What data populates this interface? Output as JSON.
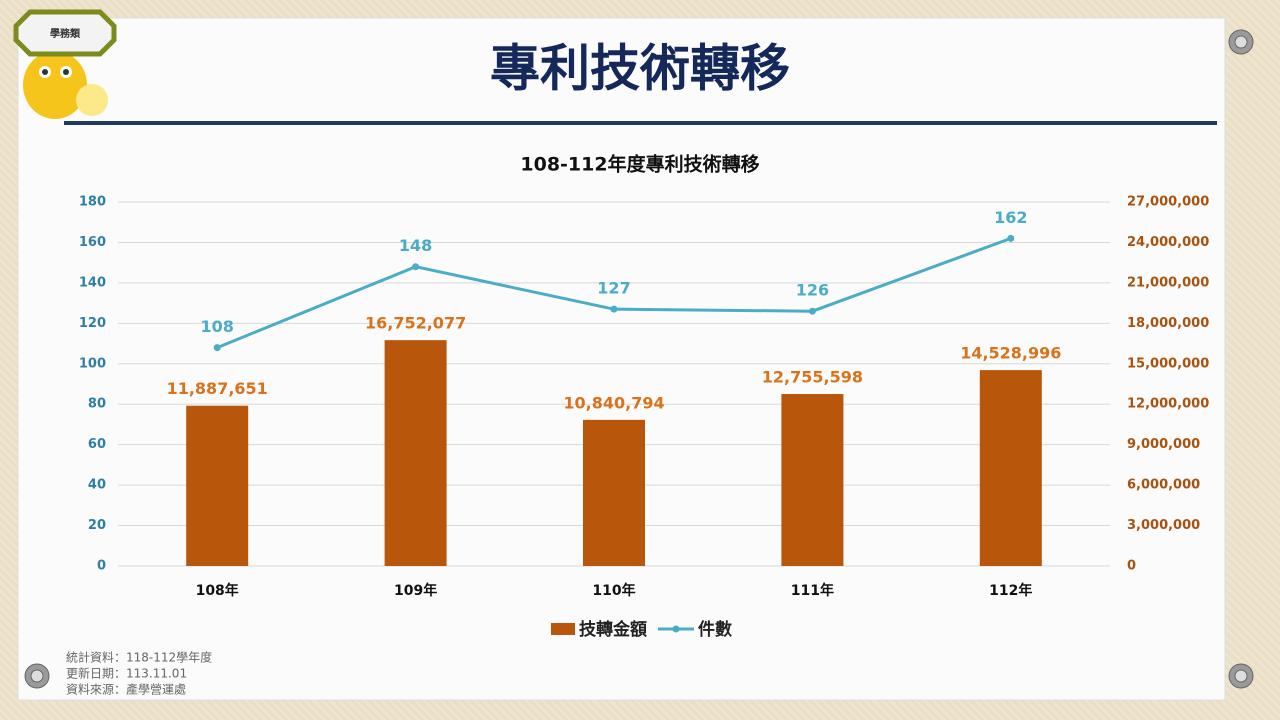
{
  "slide": {
    "badge": "學務類",
    "title": "專利技術轉移",
    "notes": [
      "統計資料：118-112學年度",
      "更新日期：113.11.01",
      "資料來源：產學營運處"
    ]
  },
  "chart_data": {
    "type": "combo",
    "title": "108-112年度專利技術轉移",
    "categories": [
      "108年",
      "109年",
      "110年",
      "111年",
      "112年"
    ],
    "series": [
      {
        "name": "技轉金額",
        "type": "bar",
        "axis": "y2",
        "color": "#b8560b",
        "values": [
          11887651,
          16752077,
          10840794,
          12755598,
          14528996
        ],
        "value_labels": [
          "11,887,651",
          "16,752,077",
          "10,840,794",
          "12,755,598",
          "14,528,996"
        ]
      },
      {
        "name": "件數",
        "type": "line",
        "color": "#4bacc6",
        "values": [
          108,
          148,
          127,
          126,
          162
        ]
      }
    ],
    "ylim": [
      0,
      180
    ],
    "yticks": [
      0,
      20,
      40,
      60,
      80,
      100,
      120,
      140,
      160,
      180
    ],
    "y2lim": [
      0,
      27000000
    ],
    "y2ticks": [
      0,
      {
        "value": 3000000,
        "label": "3,000,000"
      },
      {
        "value": 6000000,
        "label": "6,000,000"
      },
      {
        "value": 9000000,
        "label": "9,000,000"
      },
      {
        "value": 12000000,
        "label": "12,000,000"
      },
      {
        "value": 15000000,
        "label": "15,000,000"
      },
      {
        "value": 18000000,
        "label": "18,000,000"
      },
      {
        "value": 21000000,
        "label": "21,000,000"
      },
      {
        "value": 24000000,
        "label": "24,000,000"
      },
      {
        "value": 27000000,
        "label": "27,000,000"
      }
    ],
    "grid": true,
    "legend": "bottom"
  }
}
